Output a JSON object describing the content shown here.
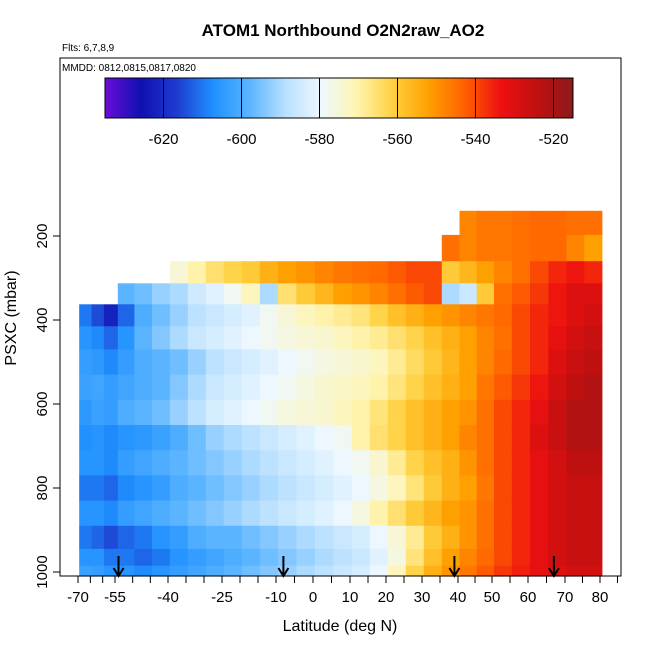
{
  "chart_data": {
    "type": "heatmap",
    "title": "ATOM1 Northbound O2N2raw_AO2",
    "subtitle_flights": "Flts: 6,7,8,9",
    "subtitle_dates": "MMDD: 0812,0815,0817,0820",
    "xlabel": "Latitude (deg N)",
    "ylabel": "PSXC (mbar)",
    "xlim": [
      -70,
      85
    ],
    "ylim": [
      1000,
      150
    ],
    "x_ticks": [
      -70,
      -55,
      -40,
      -25,
      -10,
      0,
      10,
      20,
      30,
      40,
      50,
      60,
      70,
      80
    ],
    "x_tick_labels": [
      "-70",
      "-55",
      "-40",
      "-25",
      "-10",
      "0",
      "10",
      "20",
      "30",
      "40",
      "50",
      "60",
      "70",
      "80"
    ],
    "y_ticks": [
      200,
      400,
      600,
      800,
      1000
    ],
    "y_tick_labels": [
      "200",
      "400",
      "600",
      "800",
      "1000"
    ],
    "colorbar": {
      "range": [
        -635,
        -515
      ],
      "ticks": [
        -620,
        -600,
        -580,
        -560,
        -540,
        -520
      ],
      "tick_labels": [
        "-620",
        "-600",
        "-580",
        "-560",
        "-540",
        "-520"
      ],
      "colors": [
        "#6a0dd8",
        "#1010b0",
        "#1e3cd0",
        "#1e90ff",
        "#5ab4ff",
        "#b8e0ff",
        "#eef8ff",
        "#fff5b0",
        "#ffd040",
        "#ffa000",
        "#ff6000",
        "#ee1010",
        "#c01010",
        "#8b1a1a"
      ]
    },
    "marker_latitudes": [
      -54,
      -8,
      39,
      67
    ],
    "columns": [
      {
        "lat": -67,
        "values": [
          null,
          null,
          null,
          null,
          -610,
          -606,
          -604,
          -603,
          -605,
          -607,
          -606,
          -610,
          -606,
          -610,
          -606,
          -603
        ]
      },
      {
        "lat": -62,
        "values": [
          null,
          null,
          null,
          null,
          -615,
          -608,
          -605,
          -602,
          -603,
          -606,
          -606,
          -610,
          -606,
          -612,
          -606,
          -604
        ]
      },
      {
        "lat": -57,
        "values": [
          null,
          null,
          null,
          null,
          -622,
          -612,
          -608,
          -604,
          -604,
          -608,
          -608,
          -612,
          -608,
          -615,
          -610,
          -606
        ]
      },
      {
        "lat": -52,
        "values": [
          null,
          null,
          null,
          -598,
          -612,
          -606,
          -604,
          -602,
          -600,
          -606,
          -604,
          -608,
          -604,
          -612,
          -610,
          -606
        ]
      },
      {
        "lat": -47,
        "values": [
          null,
          null,
          null,
          -596,
          -600,
          -598,
          -600,
          -600,
          -598,
          -605,
          -602,
          -606,
          -602,
          -610,
          -612,
          -608
        ]
      },
      {
        "lat": -42,
        "values": [
          null,
          null,
          null,
          -592,
          -596,
          -594,
          -598,
          -598,
          -596,
          -603,
          -600,
          -604,
          -600,
          -606,
          -610,
          -606
        ]
      },
      {
        "lat": -37,
        "values": [
          null,
          null,
          -575,
          -590,
          -592,
          -590,
          -596,
          -594,
          -592,
          -600,
          -598,
          -600,
          -598,
          -604,
          -606,
          -604
        ]
      },
      {
        "lat": -32,
        "values": [
          null,
          null,
          -570,
          -585,
          -588,
          -586,
          -592,
          -590,
          -588,
          -596,
          -596,
          -598,
          -596,
          -600,
          -604,
          -602
        ]
      },
      {
        "lat": -27,
        "values": [
          null,
          null,
          -565,
          -582,
          -586,
          -584,
          -588,
          -586,
          -584,
          -592,
          -594,
          -596,
          -594,
          -598,
          -602,
          -600
        ]
      },
      {
        "lat": -22,
        "values": [
          null,
          null,
          -562,
          -578,
          -584,
          -582,
          -586,
          -584,
          -582,
          -590,
          -592,
          -594,
          -592,
          -598,
          -600,
          -598
        ]
      },
      {
        "lat": -17,
        "values": [
          null,
          null,
          -560,
          -572,
          -582,
          -580,
          -584,
          -582,
          -580,
          -588,
          -590,
          -592,
          -590,
          -596,
          -598,
          -596
        ]
      },
      {
        "lat": -12,
        "values": [
          null,
          null,
          -555,
          -590,
          -578,
          -578,
          -582,
          -580,
          -578,
          -586,
          -588,
          -590,
          -588,
          -594,
          -596,
          -594
        ]
      },
      {
        "lat": -7,
        "values": [
          null,
          null,
          -552,
          -565,
          -575,
          -576,
          -580,
          -578,
          -576,
          -584,
          -586,
          -588,
          -586,
          -592,
          -594,
          -592
        ]
      },
      {
        "lat": -2,
        "values": [
          null,
          null,
          -550,
          -560,
          -572,
          -575,
          -578,
          -576,
          -575,
          -582,
          -584,
          -586,
          -584,
          -590,
          -592,
          -590
        ]
      },
      {
        "lat": 3,
        "values": [
          null,
          null,
          -548,
          -556,
          -570,
          -574,
          -576,
          -574,
          -574,
          -580,
          -582,
          -584,
          -582,
          -588,
          -590,
          -588
        ]
      },
      {
        "lat": 8,
        "values": [
          null,
          null,
          -546,
          -552,
          -568,
          -572,
          -575,
          -573,
          -572,
          -578,
          -580,
          -582,
          -580,
          -586,
          -588,
          -586
        ]
      },
      {
        "lat": 13,
        "values": [
          null,
          null,
          -545,
          -550,
          -566,
          -570,
          -574,
          -572,
          -570,
          -570,
          -578,
          -580,
          -576,
          -584,
          -586,
          -584
        ]
      },
      {
        "lat": 18,
        "values": [
          null,
          null,
          -544,
          -548,
          -562,
          -568,
          -572,
          -570,
          -566,
          -565,
          -574,
          -576,
          -570,
          -580,
          -582,
          -580
        ]
      },
      {
        "lat": 23,
        "values": [
          null,
          null,
          -542,
          -545,
          -558,
          -565,
          -568,
          -566,
          -562,
          -562,
          -568,
          -572,
          -565,
          -575,
          -576,
          -572
        ]
      },
      {
        "lat": 28,
        "values": [
          null,
          null,
          -540,
          -542,
          -555,
          -562,
          -564,
          -562,
          -558,
          -558,
          -562,
          -566,
          -560,
          -568,
          -566,
          -562
        ]
      },
      {
        "lat": 33,
        "values": [
          null,
          null,
          -540,
          -540,
          -552,
          -558,
          -560,
          -558,
          -555,
          -555,
          -558,
          -560,
          -556,
          -560,
          -558,
          -555
        ]
      },
      {
        "lat": 38,
        "values": [
          null,
          -545,
          -560,
          -590,
          -550,
          -555,
          -556,
          -555,
          -552,
          -552,
          -555,
          -555,
          -552,
          -555,
          -552,
          -550
        ]
      },
      {
        "lat": 43,
        "values": [
          -548,
          -548,
          -556,
          -586,
          -548,
          -552,
          -552,
          -552,
          -550,
          -548,
          -550,
          -552,
          -550,
          -550,
          -548,
          -546
        ]
      },
      {
        "lat": 48,
        "values": [
          -546,
          -546,
          -552,
          -560,
          -546,
          -548,
          -548,
          -546,
          -545,
          -545,
          -545,
          -546,
          -545,
          -545,
          -544,
          -542
        ]
      },
      {
        "lat": 53,
        "values": [
          -546,
          -546,
          -548,
          -545,
          -544,
          -545,
          -544,
          -542,
          -540,
          -540,
          -540,
          -540,
          -540,
          -540,
          -540,
          -538
        ]
      },
      {
        "lat": 58,
        "values": [
          -545,
          -545,
          -545,
          -542,
          -540,
          -540,
          -540,
          -538,
          -536,
          -536,
          -536,
          -536,
          -536,
          -536,
          -536,
          -535
        ]
      },
      {
        "lat": 63,
        "values": [
          -544,
          -544,
          -540,
          -538,
          -536,
          -536,
          -536,
          -534,
          -532,
          -530,
          -532,
          -532,
          -532,
          -532,
          -532,
          -532
        ]
      },
      {
        "lat": 68,
        "values": [
          -544,
          -544,
          -536,
          -534,
          -534,
          -532,
          -530,
          -528,
          -526,
          -526,
          -528,
          -528,
          -528,
          -528,
          -528,
          -530
        ]
      },
      {
        "lat": 73,
        "values": [
          -545,
          -548,
          -534,
          -530,
          -530,
          -528,
          -526,
          -524,
          -522,
          -522,
          -524,
          -526,
          -526,
          -526,
          -526,
          -528
        ]
      },
      {
        "lat": 78,
        "values": [
          -545,
          -552,
          -536,
          -530,
          -528,
          -526,
          -524,
          -522,
          -522,
          -522,
          -524,
          -526,
          -526,
          -526,
          -526,
          -528
        ]
      }
    ],
    "pressure_levels": [
      165,
      230,
      290,
      335,
      390,
      440,
      500,
      560,
      620,
      680,
      740,
      800,
      860,
      920,
      970,
      1000
    ]
  }
}
